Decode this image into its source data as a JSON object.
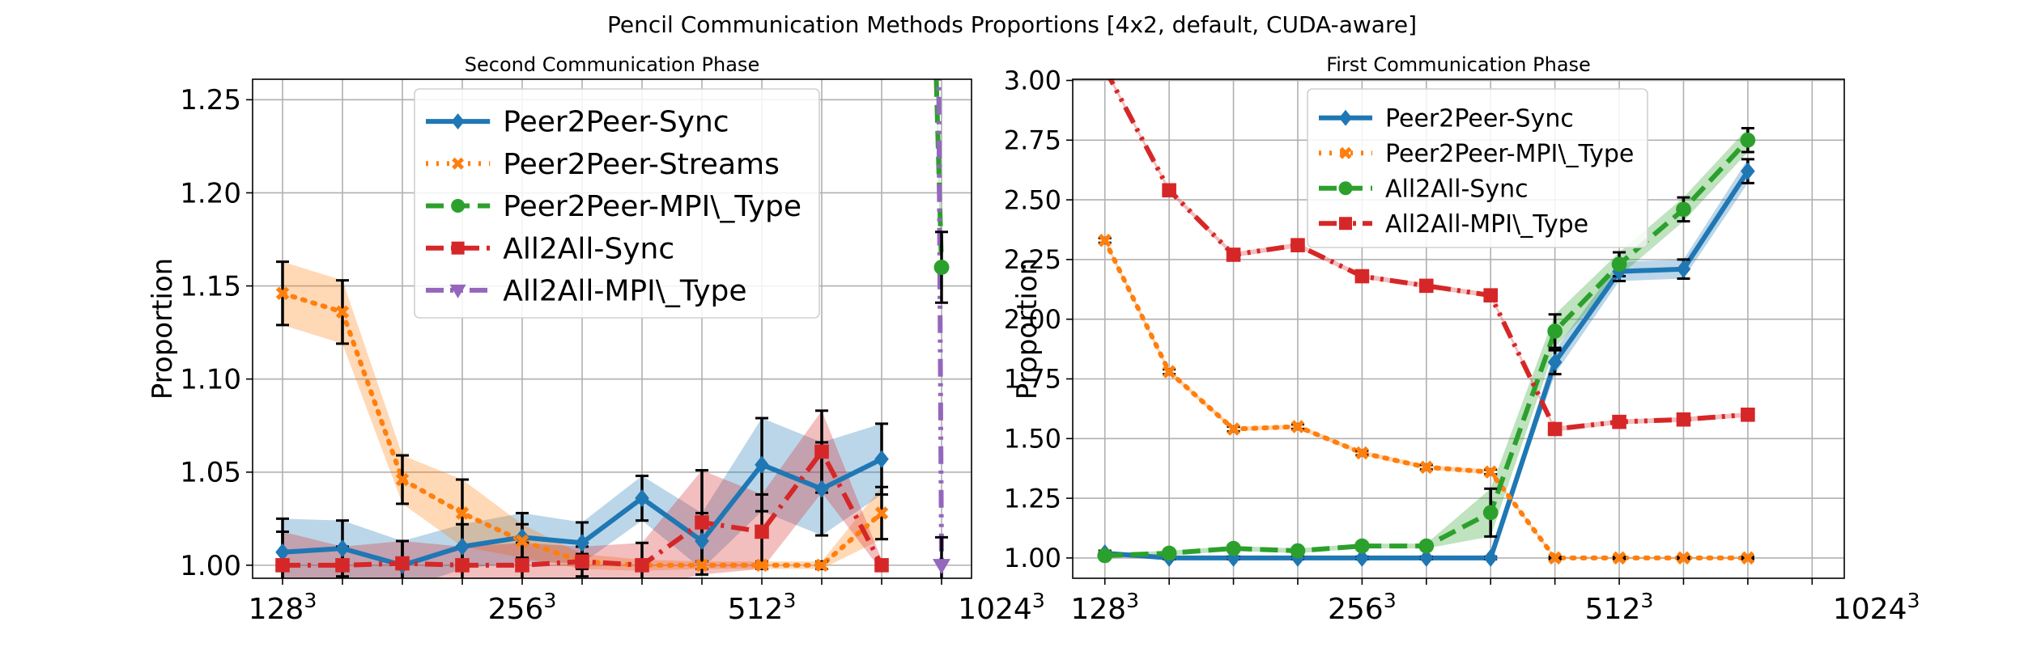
{
  "figure": {
    "title": "Pencil Communication Methods Proportions [4x2, default, CUDA-aware]"
  },
  "chart_data": [
    {
      "type": "line",
      "title": "Second Communication Phase",
      "xlabel": "",
      "ylabel": "Proportion",
      "x_range": [
        -0.5,
        11.5
      ],
      "ylim": [
        0.993,
        1.261
      ],
      "yticks": [
        1.0,
        1.05,
        1.1,
        1.15,
        1.2,
        1.25
      ],
      "yticklabels": [
        "1.00",
        "1.05",
        "1.10",
        "1.15",
        "1.20",
        "1.25"
      ],
      "xticks": [
        0,
        1,
        2,
        3,
        4,
        5,
        6,
        7,
        8,
        9,
        10,
        11
      ],
      "xticklabels": [
        {
          "base": "128",
          "exp": "3"
        },
        {
          "base": "",
          "exp": ""
        },
        {
          "base": "256",
          "exp": "3"
        },
        {
          "base": "",
          "exp": ""
        },
        {
          "base": "512",
          "exp": "3"
        },
        {
          "base": "",
          "exp": ""
        },
        {
          "base": "1024",
          "exp": "3"
        },
        {
          "base": "",
          "exp": ""
        },
        {
          "base": "",
          "exp": ""
        },
        {
          "base": "",
          "exp": ""
        },
        {
          "base": "",
          "exp": ""
        },
        {
          "base": "",
          "exp": ""
        }
      ],
      "xtick_positions": [
        0,
        2,
        4,
        6
      ],
      "xtick_scale": 0.5,
      "grid": true,
      "legend_loc": "upper center",
      "legend_fontsize": 36,
      "series": [
        {
          "name": "Peer2Peer-Sync",
          "color": "#1f77b4",
          "linestyle": "solid",
          "marker": "diamond",
          "x": [
            0,
            1,
            2,
            3,
            4,
            5,
            6,
            7,
            8,
            9,
            10
          ],
          "y": [
            1.007,
            1.009,
            1.0,
            1.01,
            1.015,
            1.012,
            1.036,
            1.013,
            1.054,
            1.041,
            1.057
          ],
          "err": [
            0.018,
            0.015,
            0.013,
            0.012,
            0.013,
            0.011,
            0.012,
            0.015,
            0.025,
            0.025,
            0.019
          ]
        },
        {
          "name": "Peer2Peer-Streams",
          "color": "#ff7f0e",
          "linestyle": "dotted",
          "marker": "x",
          "x": [
            0,
            1,
            2,
            3,
            4,
            5,
            6,
            7,
            8,
            9,
            10
          ],
          "y": [
            1.146,
            1.136,
            1.046,
            1.028,
            1.013,
            1.002,
            1.0,
            1.0,
            1.0,
            1.0,
            1.028
          ],
          "err": [
            0.017,
            0.017,
            0.013,
            0.018,
            0.009,
            0.004,
            0.003,
            0.002,
            0.002,
            0.002,
            0.014
          ]
        },
        {
          "name": "Peer2Peer-MPI\\_Type",
          "color": "#2ca02c",
          "linestyle": "dashed",
          "marker": "circle",
          "x": [
            10.9,
            11.0,
            11.0
          ],
          "y": [
            1.275,
            1.16,
            1.16
          ],
          "err": [
            0,
            0.019,
            0
          ]
        },
        {
          "name": "All2All-Sync",
          "color": "#d62728",
          "linestyle": "dashdot",
          "marker": "square",
          "x": [
            0,
            1,
            2,
            3,
            4,
            5,
            6,
            7,
            8,
            9,
            10
          ],
          "y": [
            1.0,
            1.0,
            1.001,
            1.0,
            1.0,
            1.002,
            1.0,
            1.023,
            1.018,
            1.061,
            1.0
          ],
          "err": [
            0.018,
            0.01,
            0.012,
            0.01,
            0.012,
            0.008,
            0.012,
            0.028,
            0.02,
            0.022,
            0.003
          ]
        },
        {
          "name": "All2All-MPI\\_Type",
          "color": "#9467bd",
          "linestyle": "dashdotdot",
          "marker": "triangle-down",
          "x": [
            10.95,
            11.0
          ],
          "y": [
            1.275,
            1.0
          ],
          "err": [
            0,
            0.015
          ]
        }
      ]
    },
    {
      "type": "line",
      "title": "First Communication Phase",
      "xlabel": "",
      "ylabel": "Proportion",
      "x_range": [
        -0.5,
        11.5
      ],
      "ylim": [
        0.915,
        3.005
      ],
      "yticks": [
        1.0,
        1.25,
        1.5,
        1.75,
        2.0,
        2.25,
        2.5,
        2.75,
        3.0
      ],
      "yticklabels": [
        "1.00",
        "1.25",
        "1.50",
        "1.75",
        "2.00",
        "2.25",
        "2.50",
        "2.75",
        "3.00"
      ],
      "xticks": [
        0,
        1,
        2,
        3,
        4,
        5,
        6,
        7,
        8,
        9,
        10,
        11
      ],
      "xticklabels": [
        {
          "base": "128",
          "exp": "3"
        },
        {
          "base": "",
          "exp": ""
        },
        {
          "base": "256",
          "exp": "3"
        },
        {
          "base": "",
          "exp": ""
        },
        {
          "base": "512",
          "exp": "3"
        },
        {
          "base": "",
          "exp": ""
        },
        {
          "base": "1024",
          "exp": "3"
        },
        {
          "base": "",
          "exp": ""
        },
        {
          "base": "",
          "exp": ""
        },
        {
          "base": "",
          "exp": ""
        },
        {
          "base": "",
          "exp": ""
        },
        {
          "base": "",
          "exp": ""
        }
      ],
      "xtick_positions": [
        0,
        2,
        4,
        6
      ],
      "xtick_scale": 0.5,
      "grid": true,
      "legend_loc": "upper center",
      "legend_fontsize": 30,
      "series": [
        {
          "name": "Peer2Peer-Sync",
          "color": "#1f77b4",
          "linestyle": "solid",
          "marker": "diamond",
          "x": [
            0,
            1,
            2,
            3,
            4,
            5,
            6,
            7,
            8,
            9,
            10
          ],
          "y": [
            1.02,
            1.0,
            1.0,
            1.0,
            1.0,
            1.0,
            1.0,
            1.82,
            2.2,
            2.21,
            2.62
          ],
          "err": [
            0.01,
            0.005,
            0.005,
            0.005,
            0.005,
            0.005,
            0.005,
            0.05,
            0.04,
            0.04,
            0.05
          ]
        },
        {
          "name": "Peer2Peer-MPI\\_Type",
          "color": "#ff7f0e",
          "linestyle": "dotted",
          "marker": "x",
          "x": [
            0,
            1,
            2,
            3,
            4,
            5,
            6,
            7,
            8,
            9,
            10
          ],
          "y": [
            2.33,
            1.78,
            1.54,
            1.55,
            1.44,
            1.38,
            1.36,
            1.0,
            1.0,
            1.0,
            1.0
          ],
          "err": [
            0.01,
            0.01,
            0.01,
            0.01,
            0.01,
            0.01,
            0.01,
            0.005,
            0.005,
            0.005,
            0.005
          ]
        },
        {
          "name": "All2All-Sync",
          "color": "#2ca02c",
          "linestyle": "dashed",
          "marker": "circle",
          "x": [
            0,
            1,
            2,
            3,
            4,
            5,
            6,
            7,
            8,
            9,
            10
          ],
          "y": [
            1.01,
            1.02,
            1.04,
            1.03,
            1.05,
            1.05,
            1.19,
            1.95,
            2.23,
            2.46,
            2.75
          ],
          "err": [
            0.01,
            0.01,
            0.01,
            0.01,
            0.01,
            0.01,
            0.1,
            0.07,
            0.05,
            0.05,
            0.05
          ]
        },
        {
          "name": "All2All-MPI\\_Type",
          "color": "#d62728",
          "linestyle": "dashdotdot",
          "marker": "square",
          "x": [
            0,
            1,
            2,
            3,
            4,
            5,
            6,
            7,
            8,
            9,
            10
          ],
          "y": [
            3.05,
            2.54,
            2.27,
            2.31,
            2.18,
            2.14,
            2.1,
            1.54,
            1.57,
            1.58,
            1.6
          ],
          "err": [
            0.01,
            0.01,
            0.01,
            0.01,
            0.01,
            0.01,
            0.01,
            0.01,
            0.01,
            0.01,
            0.01
          ]
        }
      ]
    }
  ]
}
